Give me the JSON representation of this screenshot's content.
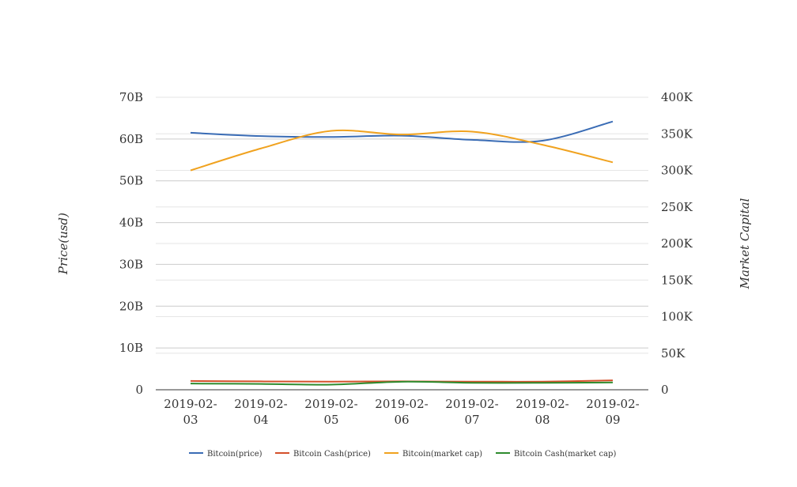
{
  "chart_data": {
    "type": "line",
    "x": [
      "2019-02-03",
      "2019-02-04",
      "2019-02-05",
      "2019-02-06",
      "2019-02-07",
      "2019-02-08",
      "2019-02-09"
    ],
    "x_tick_labels": [
      [
        "2019-02-",
        "03"
      ],
      [
        "2019-02-",
        "04"
      ],
      [
        "2019-02-",
        "05"
      ],
      [
        "2019-02-",
        "06"
      ],
      [
        "2019-02-",
        "07"
      ],
      [
        "2019-02-",
        "08"
      ],
      [
        "2019-02-",
        "09"
      ]
    ],
    "ylabel": "Price(usd)",
    "y2label": "Market Capital",
    "ylim": [
      0,
      70000000000
    ],
    "y2lim": [
      0,
      400000
    ],
    "yticks": [
      0,
      10000000000,
      20000000000,
      30000000000,
      40000000000,
      50000000000,
      60000000000,
      70000000000
    ],
    "ytick_labels": [
      "0",
      "10B",
      "20B",
      "30B",
      "40B",
      "50B",
      "60B",
      "70B"
    ],
    "y2ticks": [
      0,
      50000,
      100000,
      150000,
      200000,
      250000,
      300000,
      350000,
      400000
    ],
    "y2tick_labels": [
      "0",
      "50K",
      "100K",
      "150K",
      "200K",
      "250K",
      "300K",
      "350K",
      "400K"
    ],
    "grid": true,
    "legend_position": "bottom",
    "series": [
      {
        "name": "Bitcoin(price)",
        "axis": "left",
        "color": "#3a6cb5",
        "values": [
          61500000000,
          60700000000,
          60500000000,
          60800000000,
          59800000000,
          59600000000,
          64200000000
        ]
      },
      {
        "name": "Bitcoin Cash(price)",
        "axis": "left",
        "color": "#d4502a",
        "values": [
          2100000000,
          2000000000,
          1950000000,
          2000000000,
          1950000000,
          1950000000,
          2250000000
        ]
      },
      {
        "name": "Bitcoin(market cap)",
        "axis": "right",
        "color": "#f0a21f",
        "values": [
          300000,
          330000,
          354000,
          349000,
          353000,
          335000,
          311000
        ]
      },
      {
        "name": "Bitcoin Cash(market cap)",
        "axis": "right",
        "color": "#2e8b2e",
        "values": [
          8500,
          8000,
          7000,
          11000,
          9500,
          9500,
          10000
        ]
      }
    ]
  }
}
